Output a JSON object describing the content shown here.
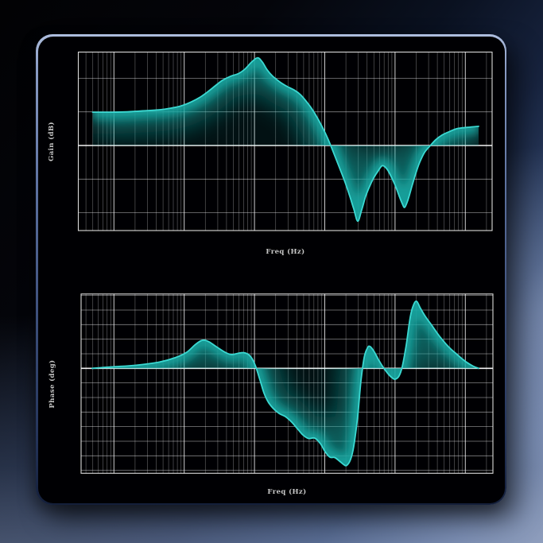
{
  "panel": {
    "background": "#000003",
    "border_top_color": "#aebede",
    "border_bottom_color": "#141f3a"
  },
  "colors": {
    "page_gradient_dark": "#020204",
    "page_gradient_light": "#aab6ce",
    "grid_minor": "#ffffff",
    "grid_minor_opacity": 0.35,
    "grid_major_opacity": 0.8,
    "baseline_opacity": 0.95,
    "plot_border": "#ffffff"
  },
  "chart_data": [
    {
      "id": "gain",
      "type": "area",
      "title": "",
      "xlabel": "Freq (Hz)",
      "ylabel": "Gain (dB)",
      "x_scale": "log",
      "x_unit": "decades (log10 frequency, axis tick labels not shown)",
      "x_major_gridlines_d": [
        0,
        1,
        2,
        3,
        4,
        5
      ],
      "x_range_d": [
        -0.51,
        5.38
      ],
      "y_unit": "dB (estimated, 10 dB per gridline)",
      "y_gridlines": [
        20,
        10,
        0,
        -10,
        -20
      ],
      "ylim": [
        -25.3,
        27.8
      ],
      "baseline": 0,
      "legend": "none",
      "colors": {
        "stroke": "#3bd8d1",
        "glow": "#17a9a3"
      },
      "points": [
        [
          -0.303,
          9.9
        ],
        [
          -0.037,
          9.9
        ],
        [
          0.189,
          10.0
        ],
        [
          0.415,
          10.3
        ],
        [
          0.641,
          10.6
        ],
        [
          0.811,
          11.1
        ],
        [
          0.958,
          11.8
        ],
        [
          1.094,
          12.9
        ],
        [
          1.229,
          14.4
        ],
        [
          1.343,
          16.1
        ],
        [
          1.456,
          18.0
        ],
        [
          1.546,
          19.4
        ],
        [
          1.66,
          20.6
        ],
        [
          1.773,
          21.4
        ],
        [
          1.863,
          22.7
        ],
        [
          1.954,
          24.7
        ],
        [
          2.044,
          26.1
        ],
        [
          2.112,
          24.8
        ],
        [
          2.18,
          22.5
        ],
        [
          2.259,
          20.6
        ],
        [
          2.361,
          18.9
        ],
        [
          2.451,
          17.7
        ],
        [
          2.564,
          16.5
        ],
        [
          2.655,
          15.1
        ],
        [
          2.734,
          13.2
        ],
        [
          2.813,
          11.0
        ],
        [
          2.892,
          8.3
        ],
        [
          2.972,
          5.2
        ],
        [
          3.051,
          1.7
        ],
        [
          3.13,
          -2.4
        ],
        [
          3.209,
          -6.6
        ],
        [
          3.288,
          -10.9
        ],
        [
          3.356,
          -15.1
        ],
        [
          3.413,
          -18.9
        ],
        [
          3.469,
          -22.5
        ],
        [
          3.526,
          -19.1
        ],
        [
          3.582,
          -15.1
        ],
        [
          3.639,
          -12.1
        ],
        [
          3.695,
          -9.7
        ],
        [
          3.752,
          -7.8
        ],
        [
          3.82,
          -6.0
        ],
        [
          3.888,
          -7.1
        ],
        [
          3.944,
          -9.2
        ],
        [
          4.001,
          -11.8
        ],
        [
          4.057,
          -14.9
        ],
        [
          4.103,
          -17.3
        ],
        [
          4.137,
          -18.4
        ],
        [
          4.182,
          -16.3
        ],
        [
          4.238,
          -12.3
        ],
        [
          4.295,
          -8.3
        ],
        [
          4.351,
          -5.0
        ],
        [
          4.419,
          -2.1
        ],
        [
          4.499,
          -0.1
        ],
        [
          4.578,
          1.7
        ],
        [
          4.668,
          3.1
        ],
        [
          4.77,
          4.1
        ],
        [
          4.883,
          5.0
        ],
        [
          5.03,
          5.4
        ],
        [
          5.189,
          5.7
        ]
      ]
    },
    {
      "id": "phase",
      "type": "area",
      "title": "",
      "xlabel": "Freq (Hz)",
      "ylabel": "Phase (deg)",
      "x_scale": "log",
      "x_unit": "decades (log10 frequency, axis tick labels not shown)",
      "x_major_gridlines_d": [
        0,
        1,
        2,
        3,
        4,
        5
      ],
      "x_range_d": [
        -0.47,
        5.39
      ],
      "y_unit": "deg (estimated, 15 deg per gridline)",
      "y_gridlines": [
        75,
        60,
        45,
        30,
        15,
        0,
        -15,
        -30,
        -45,
        -60,
        -75,
        -90,
        -105
      ],
      "ylim": [
        -108,
        76.5
      ],
      "baseline": 0,
      "legend": "none",
      "colors": {
        "stroke": "#3bd8d1",
        "glow": "#17a9a3"
      },
      "points": [
        [
          -0.309,
          0.0
        ],
        [
          -0.037,
          1.5
        ],
        [
          0.302,
          3.1
        ],
        [
          0.641,
          6.4
        ],
        [
          0.868,
          10.9
        ],
        [
          1.037,
          16.6
        ],
        [
          1.15,
          24.0
        ],
        [
          1.241,
          28.5
        ],
        [
          1.297,
          28.9
        ],
        [
          1.365,
          26.8
        ],
        [
          1.456,
          22.3
        ],
        [
          1.58,
          16.6
        ],
        [
          1.671,
          14.2
        ],
        [
          1.761,
          15.4
        ],
        [
          1.84,
          16.2
        ],
        [
          1.908,
          14.6
        ],
        [
          1.965,
          10.1
        ],
        [
          2.021,
          1.1
        ],
        [
          2.078,
          -12.0
        ],
        [
          2.134,
          -25.1
        ],
        [
          2.191,
          -34.1
        ],
        [
          2.259,
          -40.7
        ],
        [
          2.349,
          -46.4
        ],
        [
          2.44,
          -49.7
        ],
        [
          2.53,
          -55.4
        ],
        [
          2.609,
          -61.9
        ],
        [
          2.688,
          -68.5
        ],
        [
          2.768,
          -72.2
        ],
        [
          2.858,
          -71.8
        ],
        [
          2.938,
          -77.5
        ],
        [
          3.005,
          -85.7
        ],
        [
          3.073,
          -91.4
        ],
        [
          3.141,
          -91.8
        ],
        [
          3.209,
          -95.5
        ],
        [
          3.266,
          -98.8
        ],
        [
          3.311,
          -100.0
        ],
        [
          3.367,
          -93.9
        ],
        [
          3.413,
          -80.0
        ],
        [
          3.469,
          -48.8
        ],
        [
          3.514,
          -13.7
        ],
        [
          3.56,
          10.9
        ],
        [
          3.605,
          20.7
        ],
        [
          3.639,
          22.7
        ],
        [
          3.695,
          18.2
        ],
        [
          3.763,
          9.2
        ],
        [
          3.831,
          1.1
        ],
        [
          3.899,
          -5.5
        ],
        [
          3.956,
          -9.6
        ],
        [
          4.001,
          -11.2
        ],
        [
          4.057,
          -7.9
        ],
        [
          4.103,
          1.9
        ],
        [
          4.159,
          24.0
        ],
        [
          4.216,
          52.6
        ],
        [
          4.261,
          64.9
        ],
        [
          4.306,
          69.0
        ],
        [
          4.363,
          61.6
        ],
        [
          4.431,
          53.4
        ],
        [
          4.521,
          44.4
        ],
        [
          4.634,
          33.0
        ],
        [
          4.759,
          22.3
        ],
        [
          4.883,
          14.2
        ],
        [
          5.008,
          6.8
        ],
        [
          5.11,
          2.3
        ],
        [
          5.189,
          0.0
        ]
      ]
    }
  ]
}
